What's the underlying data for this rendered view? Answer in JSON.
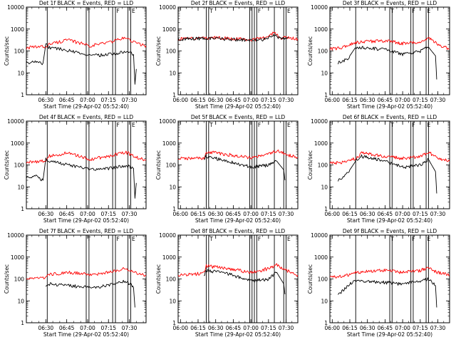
{
  "figure": {
    "start_time": "Start Time (29-Apr-02 05:52:40)",
    "ylabel": "Counts/sec",
    "colors": {
      "events": "#000000",
      "lld": "#ff0000",
      "axes": "#000000"
    }
  },
  "chart_data": [
    {
      "type": "line",
      "title": "Det 1f BLACK = Events, RED = LLD",
      "x_ticks": [
        "06:30",
        "06:45",
        "07:00",
        "07:15",
        "07:30"
      ],
      "y_ticks": [
        "1",
        "10",
        "100",
        "1000",
        "10000"
      ],
      "ylim": [
        1,
        10000
      ],
      "yscale": "log",
      "xrange_min": [
        16,
        102
      ],
      "series": [
        {
          "color": "red",
          "x": [
            16,
            30,
            32,
            45,
            55,
            62,
            75,
            87,
            95,
            102
          ],
          "values": [
            140,
            160,
            200,
            320,
            230,
            175,
            250,
            400,
            230,
            170
          ]
        },
        {
          "color": "black",
          "x": [
            16,
            23,
            28,
            30,
            32,
            45,
            55,
            62,
            75,
            87,
            92,
            93,
            94,
            95
          ],
          "values": [
            30,
            33,
            28,
            200,
            150,
            110,
            80,
            60,
            70,
            90,
            80,
            70,
            3,
            15
          ]
        }
      ],
      "markers": [
        {
          "x": 31,
          "label": ""
        },
        {
          "x": 59,
          "label": "T"
        },
        {
          "x": 61,
          "label": ""
        },
        {
          "x": 78,
          "label": ""
        },
        {
          "x": 80,
          "label": "F"
        },
        {
          "x": 89,
          "label": ""
        },
        {
          "x": 91,
          "label": "E"
        }
      ]
    },
    {
      "type": "line",
      "title": "Det 2f BLACK = Events, RED = LLD",
      "x_ticks": [
        "06:00",
        "06:15",
        "06:30",
        "06:45",
        "07:00",
        "07:15",
        "07:30"
      ],
      "y_ticks": [
        "1",
        "10",
        "100",
        "1000",
        "10000"
      ],
      "ylim": [
        1,
        10000
      ],
      "yscale": "log",
      "xrange_min": [
        -2,
        100
      ],
      "series": [
        {
          "color": "red",
          "x": [
            -2,
            20,
            40,
            60,
            72,
            80,
            86,
            92,
            100
          ],
          "values": [
            350,
            400,
            390,
            330,
            400,
            700,
            400,
            420,
            350
          ]
        },
        {
          "color": "black",
          "x": [
            -2,
            20,
            40,
            60,
            72,
            80,
            86,
            92
          ],
          "values": [
            350,
            380,
            350,
            300,
            350,
            550,
            350,
            400
          ]
        }
      ],
      "markers": [
        {
          "x": 22,
          "label": ""
        },
        {
          "x": 24,
          "label": "T"
        },
        {
          "x": 59,
          "label": ""
        },
        {
          "x": 61,
          "label": ""
        },
        {
          "x": 63,
          "label": ""
        },
        {
          "x": 65,
          "label": "F"
        },
        {
          "x": 80,
          "label": ""
        },
        {
          "x": 88,
          "label": ""
        },
        {
          "x": 90,
          "label": "E"
        }
      ]
    },
    {
      "type": "line",
      "title": "Det 3f BLACK = Events, RED = LLD",
      "x_ticks": [
        "06:00",
        "06:15",
        "06:30",
        "06:45",
        "07:00",
        "07:15",
        "07:30"
      ],
      "y_ticks": [
        "1",
        "10",
        "100",
        "1000",
        "10000"
      ],
      "ylim": [
        1,
        10000
      ],
      "yscale": "log",
      "xrange_min": [
        -2,
        100
      ],
      "series": [
        {
          "color": "red",
          "x": [
            -2,
            10,
            20,
            45,
            60,
            75,
            82,
            90,
            100
          ],
          "values": [
            120,
            150,
            250,
            300,
            220,
            250,
            400,
            200,
            120
          ]
        },
        {
          "color": "black",
          "x": [
            5,
            12,
            15,
            20,
            45,
            60,
            75,
            82,
            88,
            89
          ],
          "values": [
            30,
            40,
            60,
            150,
            120,
            70,
            100,
            150,
            60,
            5
          ]
        }
      ],
      "markers": [
        {
          "x": 20,
          "label": ""
        },
        {
          "x": 49,
          "label": "T"
        },
        {
          "x": 51,
          "label": ""
        },
        {
          "x": 67,
          "label": "F"
        },
        {
          "x": 69,
          "label": ""
        },
        {
          "x": 80,
          "label": "E"
        },
        {
          "x": 82,
          "label": ""
        }
      ]
    },
    {
      "type": "line",
      "title": "Det 4f BLACK = Events, RED = LLD",
      "x_ticks": [
        "06:30",
        "06:45",
        "07:00",
        "07:15",
        "07:30"
      ],
      "y_ticks": [
        "1",
        "10",
        "100",
        "1000",
        "10000"
      ],
      "ylim": [
        1,
        10000
      ],
      "yscale": "log",
      "xrange_min": [
        16,
        102
      ],
      "series": [
        {
          "color": "red",
          "x": [
            16,
            30,
            32,
            45,
            55,
            62,
            75,
            87,
            95,
            102
          ],
          "values": [
            130,
            160,
            250,
            350,
            250,
            180,
            250,
            400,
            230,
            170
          ]
        },
        {
          "color": "black",
          "x": [
            16,
            23,
            28,
            30,
            32,
            45,
            55,
            62,
            75,
            87,
            92,
            93,
            94,
            95
          ],
          "values": [
            30,
            30,
            20,
            200,
            150,
            110,
            80,
            60,
            70,
            90,
            80,
            70,
            3,
            15
          ]
        }
      ],
      "markers": [
        {
          "x": 31,
          "label": ""
        },
        {
          "x": 59,
          "label": "T"
        },
        {
          "x": 61,
          "label": ""
        },
        {
          "x": 78,
          "label": ""
        },
        {
          "x": 80,
          "label": "F"
        },
        {
          "x": 89,
          "label": ""
        },
        {
          "x": 91,
          "label": "E"
        }
      ]
    },
    {
      "type": "line",
      "title": "Det 5f BLACK = Events, RED = LLD",
      "x_ticks": [
        "06:00",
        "06:15",
        "06:30",
        "06:45",
        "07:00",
        "07:15",
        "07:30"
      ],
      "y_ticks": [
        "1",
        "10",
        "100",
        "1000",
        "10000"
      ],
      "ylim": [
        1,
        10000
      ],
      "yscale": "log",
      "xrange_min": [
        -2,
        100
      ],
      "series": [
        {
          "color": "red",
          "x": [
            -2,
            20,
            22,
            40,
            60,
            75,
            82,
            90,
            100
          ],
          "values": [
            200,
            200,
            400,
            300,
            220,
            300,
            450,
            300,
            220
          ]
        },
        {
          "color": "black",
          "x": [
            20,
            22,
            40,
            60,
            75,
            82,
            88,
            89
          ],
          "values": [
            200,
            250,
            150,
            80,
            100,
            150,
            60,
            20
          ]
        }
      ],
      "markers": [
        {
          "x": 22,
          "label": ""
        },
        {
          "x": 24,
          "label": "T"
        },
        {
          "x": 59,
          "label": ""
        },
        {
          "x": 61,
          "label": ""
        },
        {
          "x": 63,
          "label": ""
        },
        {
          "x": 65,
          "label": "F"
        },
        {
          "x": 80,
          "label": ""
        },
        {
          "x": 88,
          "label": ""
        },
        {
          "x": 90,
          "label": "E"
        }
      ]
    },
    {
      "type": "line",
      "title": "Det 6f BLACK = Events, RED = LLD",
      "x_ticks": [
        "06:00",
        "06:15",
        "06:30",
        "06:45",
        "07:00",
        "07:15",
        "07:30"
      ],
      "y_ticks": [
        "1",
        "10",
        "100",
        "1000",
        "10000"
      ],
      "ylim": [
        1,
        10000
      ],
      "yscale": "log",
      "xrange_min": [
        -2,
        100
      ],
      "series": [
        {
          "color": "red",
          "x": [
            -2,
            10,
            20,
            25,
            45,
            60,
            75,
            82,
            90,
            100
          ],
          "values": [
            120,
            130,
            200,
            350,
            250,
            200,
            250,
            400,
            200,
            150
          ]
        },
        {
          "color": "black",
          "x": [
            5,
            12,
            15,
            20,
            25,
            45,
            60,
            75,
            82,
            88,
            89
          ],
          "values": [
            20,
            40,
            60,
            150,
            250,
            150,
            80,
            100,
            180,
            50,
            5
          ]
        }
      ],
      "markers": [
        {
          "x": 20,
          "label": ""
        },
        {
          "x": 49,
          "label": "T"
        },
        {
          "x": 51,
          "label": ""
        },
        {
          "x": 67,
          "label": "F"
        },
        {
          "x": 69,
          "label": ""
        },
        {
          "x": 80,
          "label": "E"
        },
        {
          "x": 82,
          "label": ""
        }
      ]
    },
    {
      "type": "line",
      "title": "Det 7f BLACK = Events, RED = LLD",
      "x_ticks": [
        "06:30",
        "06:45",
        "07:00",
        "07:15",
        "07:30"
      ],
      "y_ticks": [
        "1",
        "10",
        "100",
        "1000",
        "10000"
      ],
      "ylim": [
        1,
        10000
      ],
      "yscale": "log",
      "xrange_min": [
        16,
        102
      ],
      "series": [
        {
          "color": "red",
          "x": [
            16,
            30,
            32,
            45,
            55,
            62,
            75,
            87,
            95,
            102
          ],
          "values": [
            100,
            110,
            160,
            200,
            180,
            160,
            200,
            320,
            180,
            140
          ]
        },
        {
          "color": "black",
          "x": [
            30,
            32,
            45,
            55,
            62,
            75,
            87,
            92,
            93,
            94
          ],
          "values": [
            50,
            60,
            50,
            45,
            40,
            50,
            80,
            50,
            40,
            5
          ]
        }
      ],
      "markers": [
        {
          "x": 31,
          "label": ""
        },
        {
          "x": 59,
          "label": "T"
        },
        {
          "x": 61,
          "label": ""
        },
        {
          "x": 78,
          "label": ""
        },
        {
          "x": 80,
          "label": "F"
        },
        {
          "x": 89,
          "label": ""
        },
        {
          "x": 91,
          "label": "E"
        }
      ]
    },
    {
      "type": "line",
      "title": "Det 8f BLACK = Events, RED = LLD",
      "x_ticks": [
        "06:00",
        "06:15",
        "06:30",
        "06:45",
        "07:00",
        "07:15",
        "07:30"
      ],
      "y_ticks": [
        "1",
        "10",
        "100",
        "1000",
        "10000"
      ],
      "ylim": [
        1,
        10000
      ],
      "yscale": "log",
      "xrange_min": [
        -2,
        100
      ],
      "series": [
        {
          "color": "red",
          "x": [
            -2,
            20,
            22,
            40,
            60,
            75,
            82,
            90,
            100
          ],
          "values": [
            150,
            180,
            400,
            300,
            200,
            300,
            450,
            250,
            150
          ]
        },
        {
          "color": "black",
          "x": [
            20,
            22,
            40,
            60,
            75,
            82,
            88,
            89
          ],
          "values": [
            150,
            250,
            180,
            80,
            100,
            200,
            60,
            20
          ]
        }
      ],
      "markers": [
        {
          "x": 22,
          "label": ""
        },
        {
          "x": 24,
          "label": "T"
        },
        {
          "x": 59,
          "label": ""
        },
        {
          "x": 61,
          "label": ""
        },
        {
          "x": 63,
          "label": ""
        },
        {
          "x": 65,
          "label": "F"
        },
        {
          "x": 80,
          "label": ""
        },
        {
          "x": 88,
          "label": ""
        },
        {
          "x": 90,
          "label": "E"
        }
      ]
    },
    {
      "type": "line",
      "title": "Det 9f BLACK = Events, RED = LLD",
      "x_ticks": [
        "06:00",
        "06:15",
        "06:30",
        "06:45",
        "07:00",
        "07:15",
        "07:30"
      ],
      "y_ticks": [
        "1",
        "10",
        "100",
        "1000",
        "10000"
      ],
      "ylim": [
        1,
        10000
      ],
      "yscale": "log",
      "xrange_min": [
        -2,
        100
      ],
      "series": [
        {
          "color": "red",
          "x": [
            -2,
            10,
            20,
            45,
            60,
            75,
            82,
            90,
            100
          ],
          "values": [
            120,
            130,
            200,
            250,
            200,
            250,
            320,
            200,
            150
          ]
        },
        {
          "color": "black",
          "x": [
            5,
            12,
            15,
            20,
            45,
            60,
            75,
            82,
            88,
            89
          ],
          "values": [
            20,
            40,
            60,
            80,
            70,
            60,
            80,
            100,
            50,
            5
          ]
        }
      ],
      "markers": [
        {
          "x": 20,
          "label": ""
        },
        {
          "x": 49,
          "label": "T"
        },
        {
          "x": 51,
          "label": ""
        },
        {
          "x": 67,
          "label": "F"
        },
        {
          "x": 69,
          "label": ""
        },
        {
          "x": 80,
          "label": "E"
        },
        {
          "x": 82,
          "label": ""
        }
      ]
    }
  ]
}
